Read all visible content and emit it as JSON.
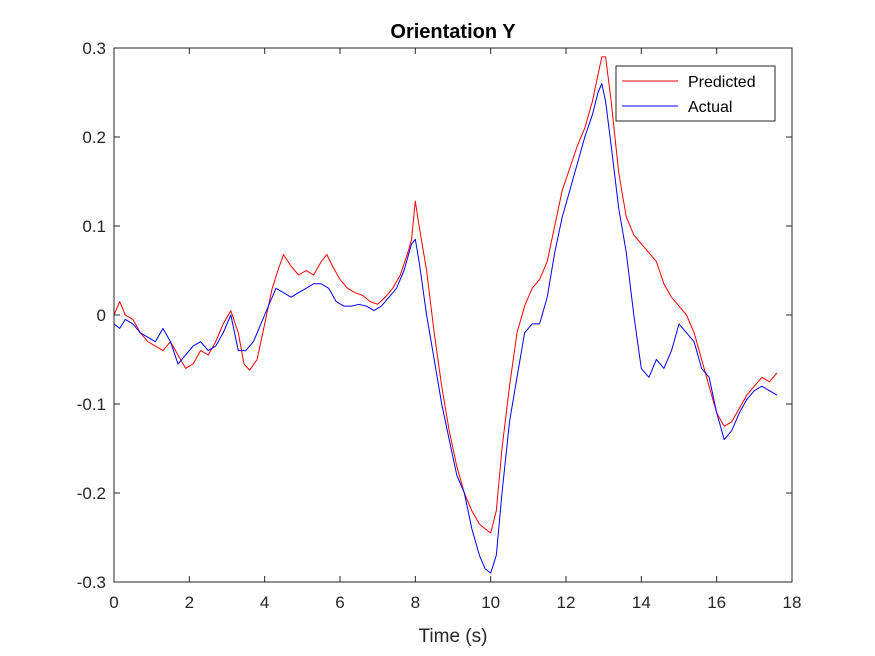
{
  "chart_data": {
    "type": "line",
    "title": "Orientation Y",
    "xlabel": "Time (s)",
    "ylabel": "",
    "xlim": [
      0,
      18
    ],
    "ylim": [
      -0.3,
      0.3
    ],
    "xticks": [
      0,
      2,
      4,
      6,
      8,
      10,
      12,
      14,
      16,
      18
    ],
    "xtick_labels": [
      "0",
      "2",
      "4",
      "6",
      "8",
      "10",
      "12",
      "14",
      "16",
      "18"
    ],
    "yticks": [
      -0.3,
      -0.2,
      -0.1,
      0,
      0.1,
      0.2,
      0.3
    ],
    "ytick_labels": [
      "-0.3",
      "-0.2",
      "-0.1",
      "0",
      "0.1",
      "0.2",
      "0.3"
    ],
    "grid": false,
    "legend_position": "top-right",
    "series": [
      {
        "name": "Predicted",
        "color": "#ff0000",
        "x": [
          0,
          0.15,
          0.3,
          0.5,
          0.7,
          0.9,
          1.1,
          1.3,
          1.5,
          1.7,
          1.9,
          2.1,
          2.3,
          2.5,
          2.7,
          2.9,
          3.1,
          3.3,
          3.45,
          3.6,
          3.8,
          4.0,
          4.2,
          4.35,
          4.5,
          4.7,
          4.9,
          5.1,
          5.3,
          5.5,
          5.65,
          5.8,
          6.0,
          6.2,
          6.4,
          6.6,
          6.8,
          7.0,
          7.2,
          7.4,
          7.6,
          7.8,
          7.9,
          8.0,
          8.1,
          8.3,
          8.5,
          8.7,
          8.9,
          9.1,
          9.3,
          9.5,
          9.7,
          9.85,
          10.0,
          10.15,
          10.3,
          10.5,
          10.7,
          10.9,
          11.1,
          11.3,
          11.5,
          11.7,
          11.9,
          12.1,
          12.3,
          12.5,
          12.7,
          12.85,
          12.95,
          13.05,
          13.2,
          13.4,
          13.6,
          13.8,
          14.0,
          14.2,
          14.4,
          14.6,
          14.8,
          15.0,
          15.2,
          15.4,
          15.6,
          15.8,
          16.0,
          16.2,
          16.4,
          16.6,
          16.8,
          17.0,
          17.2,
          17.4,
          17.6
        ],
        "y": [
          0.0,
          0.015,
          0.0,
          -0.005,
          -0.02,
          -0.03,
          -0.035,
          -0.04,
          -0.03,
          -0.045,
          -0.06,
          -0.055,
          -0.04,
          -0.045,
          -0.03,
          -0.01,
          0.005,
          -0.02,
          -0.055,
          -0.062,
          -0.05,
          -0.01,
          0.03,
          0.05,
          0.068,
          0.055,
          0.045,
          0.05,
          0.045,
          0.06,
          0.068,
          0.055,
          0.04,
          0.03,
          0.025,
          0.022,
          0.015,
          0.012,
          0.02,
          0.03,
          0.045,
          0.07,
          0.085,
          0.128,
          0.1,
          0.05,
          -0.02,
          -0.08,
          -0.13,
          -0.17,
          -0.2,
          -0.22,
          -0.235,
          -0.24,
          -0.245,
          -0.22,
          -0.15,
          -0.08,
          -0.02,
          0.01,
          0.03,
          0.04,
          0.06,
          0.1,
          0.14,
          0.165,
          0.19,
          0.21,
          0.24,
          0.27,
          0.29,
          0.29,
          0.24,
          0.16,
          0.11,
          0.09,
          0.08,
          0.07,
          0.06,
          0.035,
          0.02,
          0.01,
          0.0,
          -0.02,
          -0.05,
          -0.08,
          -0.11,
          -0.125,
          -0.12,
          -0.105,
          -0.09,
          -0.08,
          -0.07,
          -0.075,
          -0.065
        ]
      },
      {
        "name": "Actual",
        "color": "#0000ff",
        "x": [
          0,
          0.15,
          0.3,
          0.5,
          0.7,
          0.9,
          1.1,
          1.3,
          1.5,
          1.7,
          1.9,
          2.1,
          2.3,
          2.5,
          2.7,
          2.9,
          3.1,
          3.3,
          3.5,
          3.7,
          3.9,
          4.1,
          4.3,
          4.5,
          4.7,
          4.9,
          5.1,
          5.3,
          5.5,
          5.7,
          5.9,
          6.1,
          6.3,
          6.5,
          6.7,
          6.9,
          7.1,
          7.3,
          7.5,
          7.7,
          7.9,
          8.0,
          8.1,
          8.3,
          8.5,
          8.7,
          8.9,
          9.1,
          9.3,
          9.5,
          9.7,
          9.85,
          10.0,
          10.15,
          10.3,
          10.5,
          10.7,
          10.9,
          11.1,
          11.3,
          11.5,
          11.7,
          11.9,
          12.1,
          12.3,
          12.5,
          12.7,
          12.85,
          12.95,
          13.05,
          13.2,
          13.4,
          13.6,
          13.8,
          14.0,
          14.2,
          14.4,
          14.6,
          14.8,
          15.0,
          15.2,
          15.4,
          15.6,
          15.8,
          16.0,
          16.2,
          16.4,
          16.6,
          16.8,
          17.0,
          17.2,
          17.4,
          17.6
        ],
        "y": [
          -0.01,
          -0.015,
          -0.005,
          -0.01,
          -0.02,
          -0.025,
          -0.03,
          -0.015,
          -0.03,
          -0.055,
          -0.045,
          -0.035,
          -0.03,
          -0.04,
          -0.035,
          -0.02,
          0.0,
          -0.04,
          -0.04,
          -0.03,
          -0.01,
          0.01,
          0.03,
          0.025,
          0.02,
          0.025,
          0.03,
          0.035,
          0.035,
          0.03,
          0.015,
          0.01,
          0.01,
          0.012,
          0.01,
          0.005,
          0.01,
          0.02,
          0.03,
          0.05,
          0.08,
          0.085,
          0.06,
          0.0,
          -0.05,
          -0.1,
          -0.14,
          -0.18,
          -0.2,
          -0.24,
          -0.27,
          -0.285,
          -0.29,
          -0.27,
          -0.2,
          -0.12,
          -0.07,
          -0.02,
          -0.01,
          -0.01,
          0.02,
          0.07,
          0.11,
          0.14,
          0.17,
          0.2,
          0.225,
          0.25,
          0.26,
          0.24,
          0.19,
          0.12,
          0.07,
          0.0,
          -0.06,
          -0.07,
          -0.05,
          -0.06,
          -0.04,
          -0.01,
          -0.02,
          -0.03,
          -0.06,
          -0.07,
          -0.11,
          -0.14,
          -0.13,
          -0.11,
          -0.095,
          -0.085,
          -0.08,
          -0.085,
          -0.09
        ]
      }
    ]
  }
}
